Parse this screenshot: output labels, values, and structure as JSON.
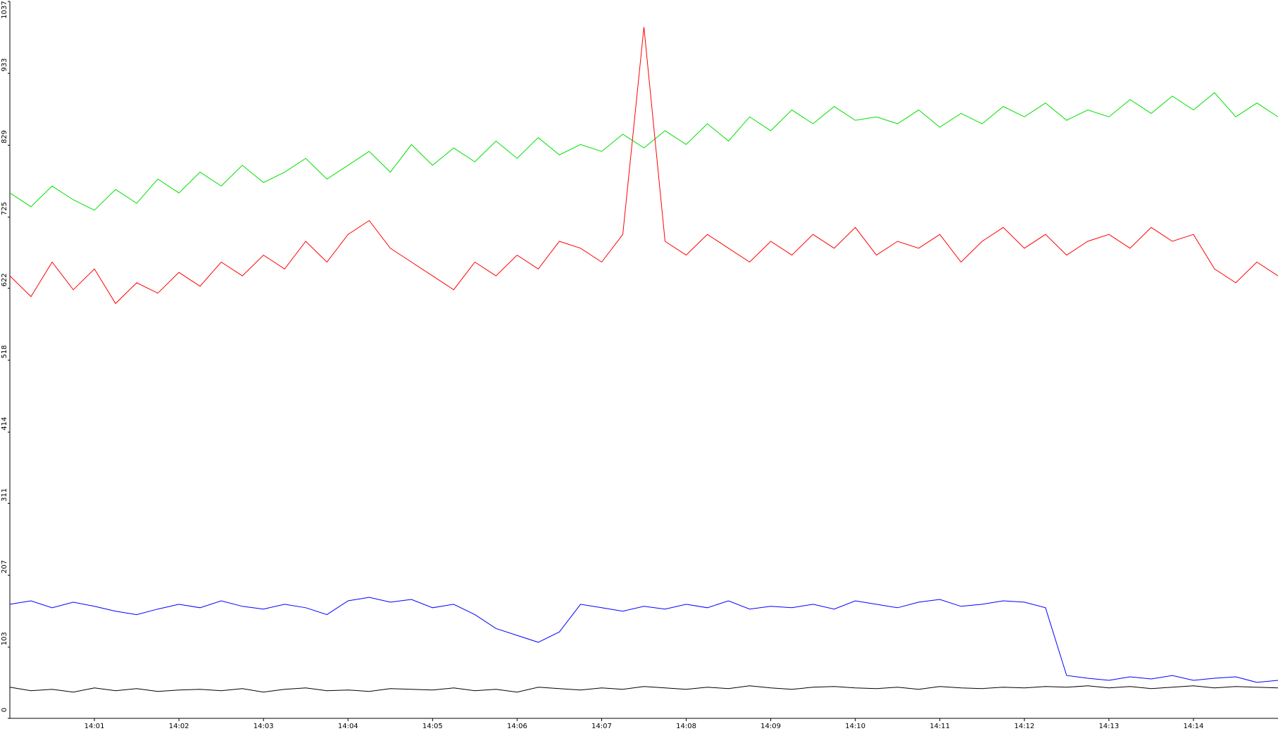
{
  "chart_data": {
    "type": "line",
    "categories": [
      null,
      null,
      null,
      null,
      "14:01",
      null,
      null,
      null,
      "14:02",
      null,
      null,
      null,
      "14:03",
      null,
      null,
      null,
      "14:04",
      null,
      null,
      null,
      "14:05",
      null,
      null,
      null,
      "14:06",
      null,
      null,
      null,
      "14:07",
      null,
      null,
      null,
      "14:08",
      null,
      null,
      null,
      "14:09",
      null,
      null,
      null,
      "14:10",
      null,
      null,
      null,
      "14:11",
      null,
      null,
      null,
      "14:12",
      null,
      null,
      null,
      "14:13",
      null,
      null,
      null,
      "14:14",
      null,
      null,
      null,
      null
    ],
    "series": [
      {
        "color": "#00e000",
        "values": [
          760,
          740,
          770,
          750,
          735,
          765,
          745,
          780,
          760,
          790,
          770,
          800,
          775,
          790,
          810,
          780,
          800,
          820,
          790,
          830,
          800,
          825,
          805,
          835,
          810,
          840,
          815,
          830,
          820,
          845,
          825,
          850,
          830,
          860,
          835,
          870,
          850,
          880,
          860,
          885,
          865,
          870,
          860,
          880,
          855,
          875,
          860,
          885,
          870,
          890,
          865,
          880,
          870,
          895,
          875,
          900,
          880,
          905,
          870,
          890,
          870
        ]
      },
      {
        "color": "#ff0000",
        "values": [
          640,
          610,
          660,
          620,
          650,
          600,
          630,
          615,
          645,
          625,
          660,
          640,
          670,
          650,
          690,
          660,
          700,
          720,
          680,
          660,
          640,
          620,
          660,
          640,
          670,
          650,
          690,
          680,
          660,
          700,
          1000,
          690,
          670,
          700,
          680,
          660,
          690,
          670,
          700,
          680,
          710,
          670,
          690,
          680,
          700,
          660,
          690,
          710,
          680,
          700,
          670,
          690,
          700,
          680,
          710,
          690,
          700,
          650,
          630,
          660,
          640
        ]
      },
      {
        "color": "#0000ff",
        "values": [
          165,
          170,
          160,
          168,
          162,
          155,
          150,
          158,
          165,
          160,
          170,
          162,
          158,
          165,
          160,
          150,
          170,
          175,
          168,
          172,
          160,
          165,
          150,
          130,
          120,
          110,
          125,
          165,
          160,
          155,
          162,
          158,
          165,
          160,
          170,
          158,
          162,
          160,
          165,
          158,
          170,
          165,
          160,
          168,
          172,
          162,
          165,
          170,
          168,
          160,
          62,
          58,
          55,
          60,
          57,
          62,
          55,
          58,
          60,
          52,
          55
        ]
      },
      {
        "color": "#000000",
        "values": [
          45,
          40,
          42,
          38,
          44,
          40,
          43,
          39,
          41,
          42,
          40,
          43,
          38,
          42,
          44,
          40,
          41,
          39,
          43,
          42,
          41,
          44,
          40,
          42,
          38,
          45,
          43,
          41,
          44,
          42,
          46,
          44,
          42,
          45,
          43,
          47,
          44,
          42,
          45,
          46,
          44,
          43,
          45,
          42,
          46,
          44,
          43,
          45,
          44,
          46,
          45,
          47,
          44,
          46,
          43,
          45,
          47,
          44,
          46,
          45,
          44
        ]
      }
    ],
    "ylim": [
      0,
      1037
    ],
    "yticks": [
      0,
      103,
      207,
      311,
      414,
      518,
      622,
      725,
      829,
      933,
      1037
    ]
  }
}
